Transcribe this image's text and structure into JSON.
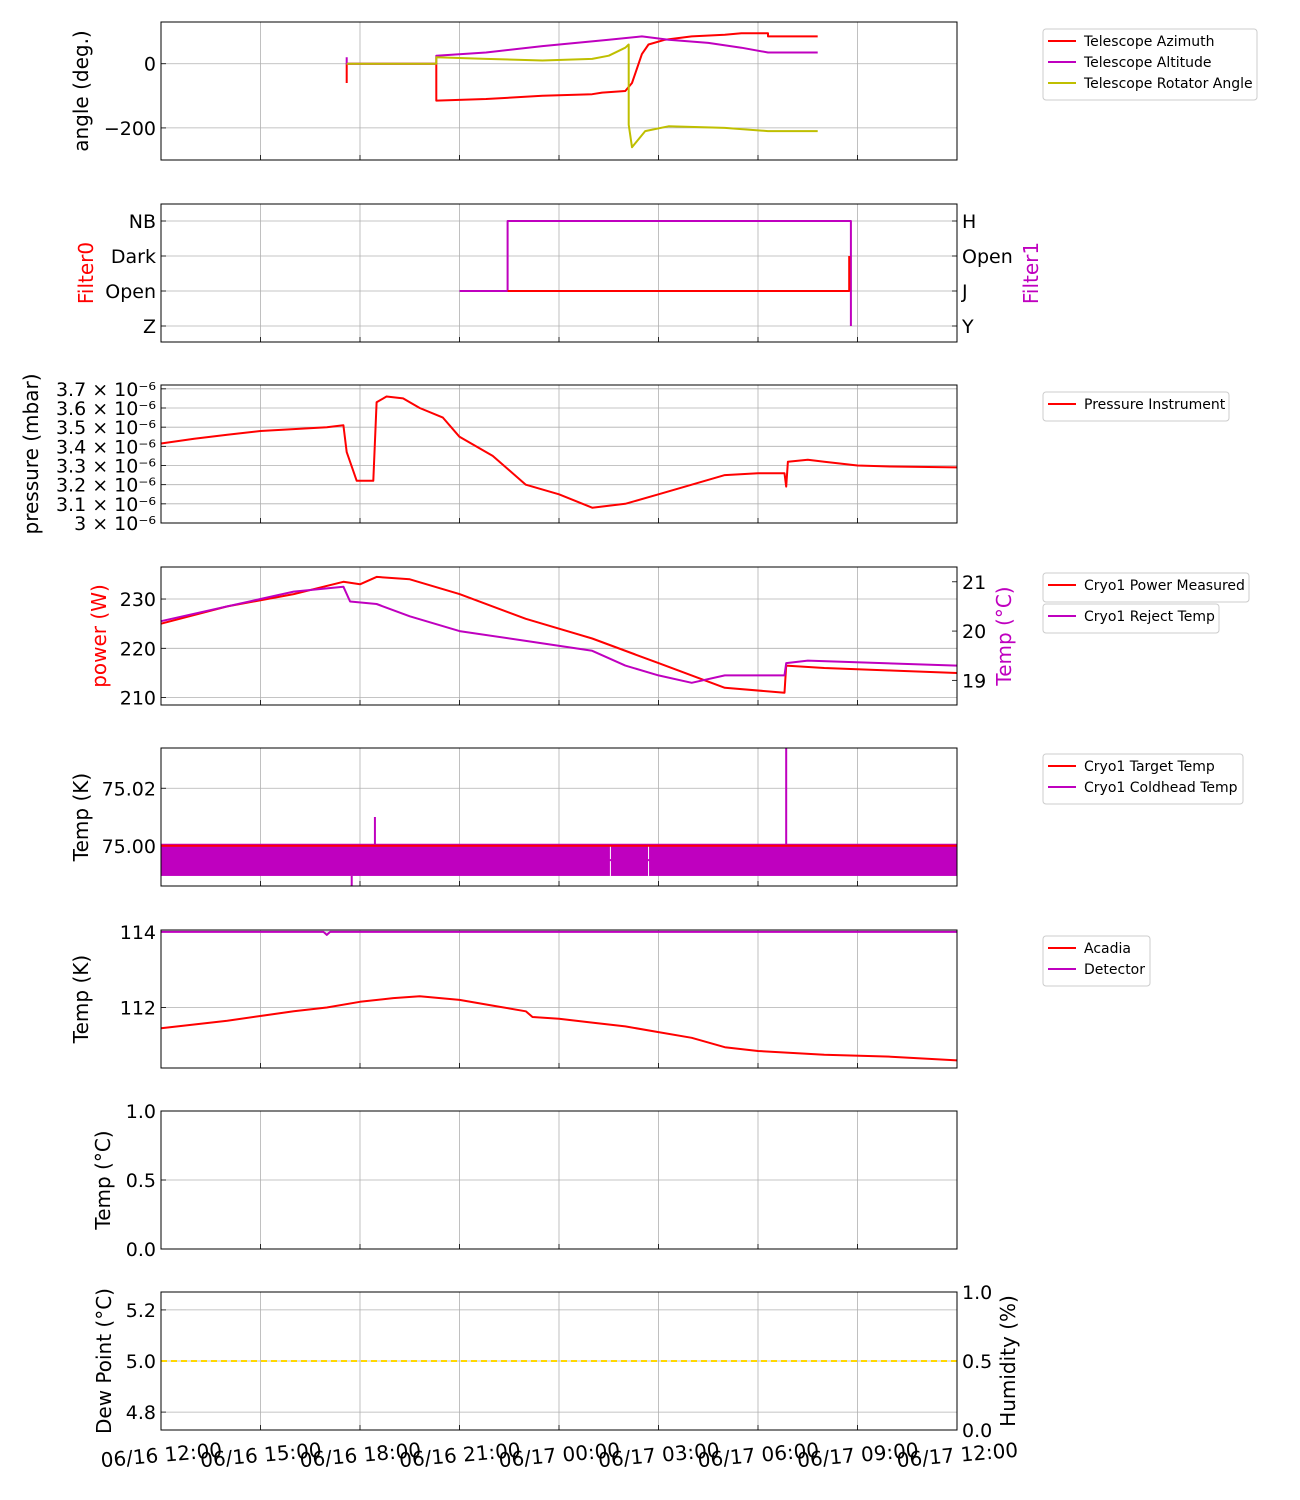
{
  "chart_data": [
    {
      "type": "line",
      "ylabel": "angle (deg.)",
      "yticks": [
        0,
        -200
      ],
      "ylim": [
        -300,
        130
      ],
      "grid": true,
      "legend": "right",
      "series": [
        {
          "name": "Telescope Azimuth",
          "color": "#ff0000",
          "points": [
            [
              5.6,
              -60
            ],
            [
              5.6,
              0
            ],
            [
              8.3,
              0
            ],
            [
              8.3,
              -115
            ],
            [
              9.8,
              -110
            ],
            [
              11.5,
              -100
            ],
            [
              13,
              -95
            ],
            [
              13.3,
              -90
            ],
            [
              14,
              -85
            ],
            [
              14.2,
              -60
            ],
            [
              14.5,
              30
            ],
            [
              14.7,
              60
            ],
            [
              15.2,
              75
            ],
            [
              16,
              85
            ],
            [
              17,
              90
            ],
            [
              17.5,
              95
            ],
            [
              18.3,
              95
            ],
            [
              18.3,
              85
            ],
            [
              19.8,
              85
            ]
          ]
        },
        {
          "name": "Telescope Altitude",
          "color": "#bf00bf",
          "points": [
            [
              5.6,
              20
            ],
            [
              5.6,
              0
            ],
            [
              8.3,
              0
            ],
            [
              8.3,
              25
            ],
            [
              9.8,
              35
            ],
            [
              11.5,
              55
            ],
            [
              13.5,
              75
            ],
            [
              14.5,
              85
            ],
            [
              15.3,
              75
            ],
            [
              16.5,
              65
            ],
            [
              17.5,
              50
            ],
            [
              18.3,
              35
            ],
            [
              19.8,
              35
            ]
          ]
        },
        {
          "name": "Telescope Rotator Angle",
          "color": "#bfbf00",
          "points": [
            [
              5.6,
              0
            ],
            [
              8.3,
              0
            ],
            [
              8.3,
              20
            ],
            [
              9.8,
              15
            ],
            [
              11.5,
              10
            ],
            [
              13,
              15
            ],
            [
              13.5,
              25
            ],
            [
              14,
              50
            ],
            [
              14.1,
              60
            ],
            [
              14.1,
              -190
            ],
            [
              14.2,
              -260
            ],
            [
              14.6,
              -210
            ],
            [
              15.3,
              -195
            ],
            [
              17,
              -200
            ],
            [
              18.3,
              -210
            ],
            [
              19.8,
              -210
            ]
          ]
        }
      ]
    },
    {
      "type": "line",
      "ylabel": "Filter0",
      "ylabel_right": "Filter1",
      "yticks_left": [
        "NB",
        "Dark",
        "Open",
        "Z"
      ],
      "yticks_right": [
        "H",
        "Open",
        "J",
        "Y"
      ],
      "grid": true,
      "series": [
        {
          "color": "#bf00bf",
          "axis": "right",
          "points": [
            [
              9,
              "J"
            ],
            [
              10.45,
              "J"
            ],
            [
              10.45,
              "H"
            ],
            [
              20.8,
              "H"
            ],
            [
              20.8,
              "Y"
            ]
          ]
        },
        {
          "color": "#ff0000",
          "axis": "left",
          "points": [
            [
              10.45,
              "Open"
            ],
            [
              20.75,
              "Open"
            ],
            [
              20.75,
              "Dark"
            ]
          ]
        }
      ]
    },
    {
      "type": "line",
      "ylabel": "pressure (mbar)",
      "ytick_labels": [
        "3.7 × 10⁻⁶",
        "3.6 × 10⁻⁶",
        "3.5 × 10⁻⁶",
        "3.4 × 10⁻⁶",
        "3.3 × 10⁻⁶",
        "3.2 × 10⁻⁶",
        "3.1 × 10⁻⁶",
        "3 × 10⁻⁶"
      ],
      "yticks": [
        3.7e-06,
        3.6e-06,
        3.5e-06,
        3.4e-06,
        3.3e-06,
        3.2e-06,
        3.1e-06,
        3e-06
      ],
      "ylim": [
        3e-06,
        3.72e-06
      ],
      "grid": true,
      "legend": "right",
      "series": [
        {
          "name": "Pressure Instrument",
          "color": "#ff0000",
          "points": [
            [
              0,
              3.415e-06
            ],
            [
              1,
              3.44e-06
            ],
            [
              2,
              3.46e-06
            ],
            [
              3,
              3.48e-06
            ],
            [
              4,
              3.49e-06
            ],
            [
              5,
              3.5e-06
            ],
            [
              5.5,
              3.51e-06
            ],
            [
              5.6,
              3.37e-06
            ],
            [
              5.9,
              3.22e-06
            ],
            [
              6.4,
              3.22e-06
            ],
            [
              6.5,
              3.63e-06
            ],
            [
              6.8,
              3.66e-06
            ],
            [
              7.3,
              3.65e-06
            ],
            [
              7.8,
              3.6e-06
            ],
            [
              8.5,
              3.55e-06
            ],
            [
              9,
              3.45e-06
            ],
            [
              10,
              3.35e-06
            ],
            [
              11,
              3.2e-06
            ],
            [
              12,
              3.15e-06
            ],
            [
              13,
              3.08e-06
            ],
            [
              14,
              3.1e-06
            ],
            [
              15,
              3.15e-06
            ],
            [
              16,
              3.2e-06
            ],
            [
              17,
              3.25e-06
            ],
            [
              18,
              3.26e-06
            ],
            [
              18.8,
              3.26e-06
            ],
            [
              18.85,
              3.19e-06
            ],
            [
              18.9,
              3.32e-06
            ],
            [
              19.5,
              3.33e-06
            ],
            [
              20,
              3.32e-06
            ],
            [
              21,
              3.3e-06
            ],
            [
              22,
              3.295e-06
            ],
            [
              24,
              3.29e-06
            ]
          ]
        }
      ]
    },
    {
      "type": "line",
      "ylabel": "power (W)",
      "ylabel_right": "Temp (°C)",
      "yticks_left": [
        230,
        220,
        210
      ],
      "yticks_right": [
        21,
        20,
        19
      ],
      "ylim_left": [
        208.5,
        236.5
      ],
      "ylim_right": [
        18.5,
        21.3
      ],
      "grid": true,
      "legend": "right",
      "series": [
        {
          "name": "Cryo1 Power Measured",
          "color": "#ff0000",
          "axis": "left",
          "points": [
            [
              0,
              225
            ],
            [
              2,
              228.5
            ],
            [
              4,
              231
            ],
            [
              5.5,
              233.5
            ],
            [
              6,
              233
            ],
            [
              6.5,
              234.5
            ],
            [
              7.5,
              234
            ],
            [
              9,
              231
            ],
            [
              11,
              226
            ],
            [
              13,
              222
            ],
            [
              15,
              217
            ],
            [
              17,
              212
            ],
            [
              18.8,
              211
            ],
            [
              18.85,
              216.5
            ],
            [
              20,
              216
            ],
            [
              22,
              215.5
            ],
            [
              24,
              215
            ]
          ]
        },
        {
          "name": "Cryo1 Reject Temp",
          "color": "#bf00bf",
          "axis": "right",
          "points": [
            [
              0,
              20.2
            ],
            [
              2,
              20.5
            ],
            [
              4,
              20.8
            ],
            [
              5.5,
              20.9
            ],
            [
              5.7,
              20.6
            ],
            [
              6.5,
              20.55
            ],
            [
              7.5,
              20.3
            ],
            [
              9,
              20.0
            ],
            [
              11,
              19.8
            ],
            [
              13,
              19.6
            ],
            [
              14,
              19.3
            ],
            [
              15,
              19.1
            ],
            [
              16,
              18.95
            ],
            [
              17,
              19.1
            ],
            [
              18.8,
              19.1
            ],
            [
              18.85,
              19.35
            ],
            [
              19.5,
              19.4
            ],
            [
              24,
              19.3
            ]
          ]
        }
      ]
    },
    {
      "type": "line",
      "ylabel": "Temp (K)",
      "yticks": [
        75.02,
        75.0
      ],
      "ylim": [
        74.986,
        75.034
      ],
      "grid": true,
      "legend": "right",
      "series": [
        {
          "name": "Cryo1 Target Temp",
          "color": "#ff0000",
          "points": [
            [
              0,
              75.0
            ],
            [
              24,
              75.0
            ]
          ]
        },
        {
          "name": "Cryo1 Coldhead Temp",
          "color": "#bf00bf",
          "points": [
            [
              0,
              74.995
            ],
            [
              24,
              74.995
            ]
          ]
        }
      ]
    },
    {
      "type": "line",
      "ylabel": "Temp (K)",
      "yticks": [
        114,
        112
      ],
      "ylim": [
        110.4,
        114.05
      ],
      "grid": true,
      "legend": "right",
      "series": [
        {
          "name": "Acadia",
          "color": "#ff0000",
          "points": [
            [
              0,
              111.45
            ],
            [
              2,
              111.65
            ],
            [
              4,
              111.9
            ],
            [
              5,
              112.0
            ],
            [
              6,
              112.15
            ],
            [
              7,
              112.25
            ],
            [
              7.8,
              112.3
            ],
            [
              9,
              112.2
            ],
            [
              10,
              112.05
            ],
            [
              11,
              111.9
            ],
            [
              11.2,
              111.75
            ],
            [
              12,
              111.7
            ],
            [
              13,
              111.6
            ],
            [
              14,
              111.5
            ],
            [
              15,
              111.35
            ],
            [
              16,
              111.2
            ],
            [
              17,
              110.95
            ],
            [
              18,
              110.85
            ],
            [
              20,
              110.75
            ],
            [
              22,
              110.7
            ],
            [
              24,
              110.6
            ]
          ]
        },
        {
          "name": "Detector",
          "color": "#bf00bf",
          "points": [
            [
              0,
              114.0
            ],
            [
              4.9,
              114.0
            ],
            [
              5.0,
              113.92
            ],
            [
              5.1,
              114.0
            ],
            [
              24,
              114.0
            ]
          ]
        }
      ]
    },
    {
      "type": "line",
      "ylabel": "Temp (°C)",
      "yticks": [
        1.0,
        0.5,
        0.0
      ],
      "ylim": [
        0,
        1
      ],
      "grid": true,
      "series": []
    },
    {
      "type": "line",
      "ylabel": "Dew Point (°C)",
      "ylabel_right": "Humidity (%)",
      "yticks_left": [
        5.2,
        5.0,
        4.8
      ],
      "yticks_right": [
        1.0,
        0.5,
        0.0
      ],
      "ylim_left": [
        4.73,
        5.27
      ],
      "ylim_right": [
        0,
        1
      ],
      "grid": true,
      "series": [
        {
          "color": "#ffd700",
          "axis": "left",
          "style": "dashed",
          "points": [
            [
              0,
              5.0
            ],
            [
              24,
              5.0
            ]
          ]
        }
      ],
      "xticks": [
        "06/16 12:00",
        "06/16 15:00",
        "06/16 18:00",
        "06/16 21:00",
        "06/17 00:00",
        "06/17 03:00",
        "06/17 06:00",
        "06/17 09:00",
        "06/17 12:00"
      ]
    }
  ]
}
